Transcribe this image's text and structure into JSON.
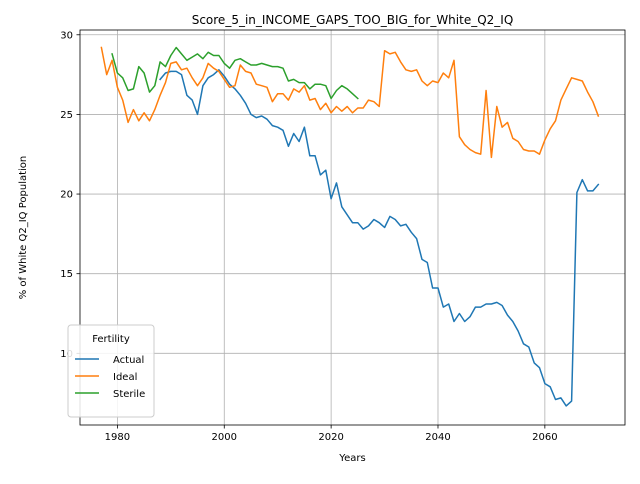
{
  "chart_data": {
    "type": "line",
    "title": "Score_5_in_INCOME_GAPS_TOO_BIG_for_White_Q2_IQ",
    "xlabel": "Years",
    "ylabel": "% of White Q2_IQ Population",
    "xlim": [
      1973,
      2075
    ],
    "ylim": [
      5.5,
      30.3
    ],
    "xticks": [
      1980,
      2000,
      2020,
      2040,
      2060
    ],
    "yticks": [
      10,
      15,
      20,
      25,
      30
    ],
    "grid": true,
    "legend": {
      "title": "Fertility",
      "placement": "lower-left"
    },
    "series": [
      {
        "name": "Actual",
        "color": "#1f77b4",
        "x": [
          1988,
          1989,
          1990,
          1991,
          1992,
          1993,
          1994,
          1995,
          1996,
          1997,
          1998,
          1999,
          2000,
          2001,
          2002,
          2003,
          2004,
          2005,
          2006,
          2007,
          2008,
          2009,
          2010,
          2011,
          2012,
          2013,
          2014,
          2015,
          2016,
          2017,
          2018,
          2019,
          2020,
          2021,
          2022,
          2023,
          2024,
          2025,
          2026,
          2027,
          2028,
          2029,
          2030,
          2031,
          2032,
          2033,
          2034,
          2035,
          2036,
          2037,
          2038,
          2039,
          2040,
          2041,
          2042,
          2043,
          2044,
          2045,
          2046,
          2047,
          2048,
          2049,
          2050,
          2051,
          2052,
          2053,
          2054,
          2055,
          2056,
          2057,
          2058,
          2059,
          2060,
          2061,
          2062,
          2063,
          2064,
          2065,
          2066,
          2067,
          2068,
          2069,
          2070
        ],
        "values": [
          27.2,
          27.6,
          27.7,
          27.7,
          27.5,
          26.2,
          25.9,
          25.0,
          26.8,
          27.3,
          27.5,
          27.8,
          27.4,
          26.9,
          26.6,
          26.2,
          25.7,
          25.0,
          24.8,
          24.9,
          24.7,
          24.3,
          24.2,
          24.0,
          23.0,
          23.8,
          23.3,
          24.2,
          22.4,
          22.4,
          21.2,
          21.5,
          19.7,
          20.7,
          19.2,
          18.7,
          18.2,
          18.2,
          17.8,
          18.0,
          18.4,
          18.2,
          17.9,
          18.6,
          18.4,
          18.0,
          18.1,
          17.6,
          17.2,
          15.9,
          15.7,
          14.1,
          14.1,
          12.9,
          13.1,
          12.0,
          12.5,
          12.0,
          12.3,
          12.9,
          12.9,
          13.1,
          13.1,
          13.2,
          13.0,
          12.4,
          12.0,
          11.4,
          10.6,
          10.4,
          9.4,
          9.1,
          8.1,
          7.9,
          7.1,
          7.2,
          6.7,
          7.0,
          20.1,
          20.9,
          20.2,
          20.2,
          20.6
        ]
      },
      {
        "name": "Ideal",
        "color": "#ff7f0e",
        "x": [
          1977,
          1978,
          1979,
          1980,
          1981,
          1982,
          1983,
          1984,
          1985,
          1986,
          1987,
          1988,
          1989,
          1990,
          1991,
          1992,
          1993,
          1994,
          1995,
          1996,
          1997,
          1998,
          1999,
          2000,
          2001,
          2002,
          2003,
          2004,
          2005,
          2006,
          2007,
          2008,
          2009,
          2010,
          2011,
          2012,
          2013,
          2014,
          2015,
          2016,
          2017,
          2018,
          2019,
          2020,
          2021,
          2022,
          2023,
          2024,
          2025,
          2026,
          2027,
          2028,
          2029,
          2030,
          2031,
          2032,
          2033,
          2034,
          2035,
          2036,
          2037,
          2038,
          2039,
          2040,
          2041,
          2042,
          2043,
          2044,
          2045,
          2046,
          2047,
          2048,
          2049,
          2050,
          2051,
          2052,
          2053,
          2054,
          2055,
          2056,
          2057,
          2058,
          2059,
          2060,
          2061,
          2062,
          2063,
          2064,
          2065,
          2066,
          2067,
          2068,
          2069,
          2070
        ],
        "values": [
          29.2,
          27.5,
          28.4,
          26.7,
          25.9,
          24.5,
          25.3,
          24.6,
          25.1,
          24.6,
          25.3,
          26.2,
          27.0,
          28.2,
          28.3,
          27.8,
          27.9,
          27.3,
          26.8,
          27.3,
          28.2,
          27.9,
          27.7,
          27.2,
          26.7,
          26.8,
          28.1,
          27.7,
          27.6,
          26.9,
          26.8,
          26.7,
          25.8,
          26.3,
          26.3,
          25.9,
          26.6,
          26.4,
          26.8,
          25.9,
          26.0,
          25.3,
          25.7,
          25.1,
          25.5,
          25.2,
          25.5,
          25.1,
          25.4,
          25.4,
          25.9,
          25.8,
          25.5,
          29.0,
          28.8,
          28.9,
          28.3,
          27.8,
          27.7,
          27.8,
          27.1,
          26.8,
          27.1,
          27.0,
          27.6,
          27.3,
          28.4,
          23.6,
          23.1,
          22.8,
          22.6,
          22.5,
          26.5,
          22.3,
          25.5,
          24.2,
          24.5,
          23.5,
          23.3,
          22.8,
          22.7,
          22.7,
          22.5,
          23.4,
          24.1,
          24.6,
          25.9,
          26.6,
          27.3,
          27.2,
          27.1,
          26.4,
          25.8,
          24.9
        ]
      },
      {
        "name": "Sterile",
        "color": "#2ca02c",
        "x": [
          1979,
          1980,
          1981,
          1982,
          1983,
          1984,
          1985,
          1986,
          1987,
          1988,
          1989,
          1990,
          1991,
          1992,
          1993,
          1994,
          1995,
          1996,
          1997,
          1998,
          1999,
          2000,
          2001,
          2002,
          2003,
          2004,
          2005,
          2006,
          2007,
          2008,
          2009,
          2010,
          2011,
          2012,
          2013,
          2014,
          2015,
          2016,
          2017,
          2018,
          2019,
          2020,
          2021,
          2022,
          2023,
          2024,
          2025
        ],
        "values": [
          28.8,
          27.6,
          27.3,
          26.5,
          26.6,
          28.0,
          27.6,
          26.4,
          26.8,
          28.3,
          28.0,
          28.7,
          29.2,
          28.8,
          28.4,
          28.6,
          28.8,
          28.5,
          28.9,
          28.7,
          28.7,
          28.2,
          27.9,
          28.4,
          28.5,
          28.3,
          28.1,
          28.1,
          28.2,
          28.1,
          28.0,
          28.0,
          27.9,
          27.1,
          27.2,
          27.0,
          27.0,
          26.6,
          26.9,
          26.9,
          26.8,
          26.0,
          26.5,
          26.8,
          26.6,
          26.3,
          26.0
        ]
      }
    ]
  }
}
